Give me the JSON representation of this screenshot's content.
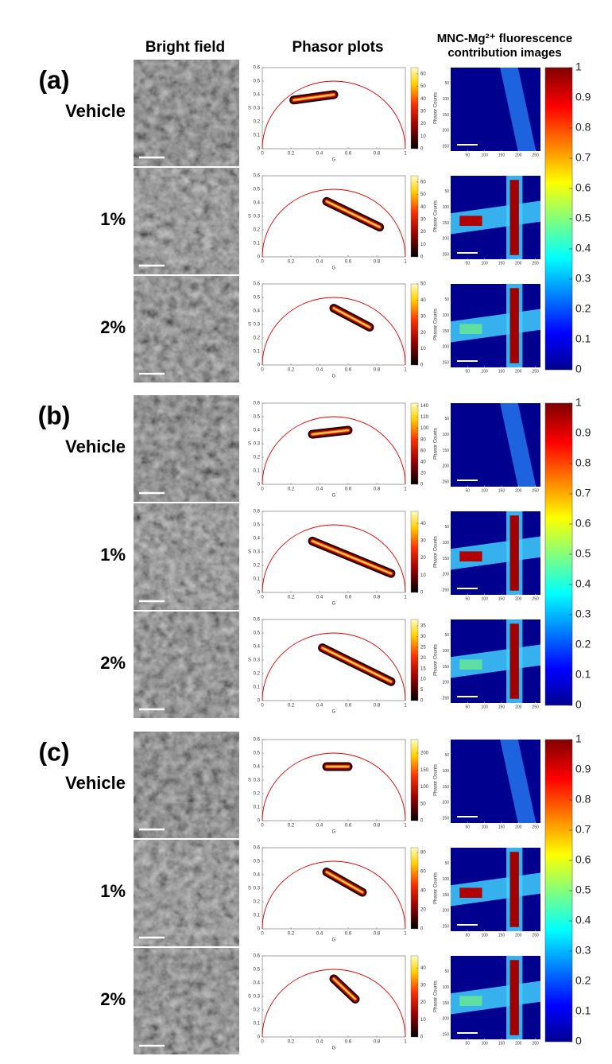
{
  "header": {
    "bright_field": "Bright field",
    "phasor": "Phasor plots",
    "contribution": [
      "MNC-Mg²⁺ fluorescence",
      "contribution images"
    ]
  },
  "phasor_axes": {
    "x_label": "G",
    "y_label": "S",
    "colorbar_label": "Phasor Counts",
    "xlim": [
      0,
      1
    ],
    "ylim": [
      0,
      0.6
    ],
    "xticks": [
      0,
      0.2,
      0.4,
      0.6,
      0.8,
      1
    ],
    "yticks": [
      0,
      0.1,
      0.2,
      0.3,
      0.4,
      0.5,
      0.6
    ],
    "circle_color": "#e00000"
  },
  "image_axes": {
    "lim": [
      0,
      265
    ],
    "ticks": [
      50,
      100,
      150,
      200,
      250
    ]
  },
  "contribution_colorbar": {
    "lim": [
      0,
      1
    ],
    "ticks": [
      0,
      0.1,
      0.2,
      0.3,
      0.4,
      0.5,
      0.6,
      0.7,
      0.8,
      0.9,
      1
    ]
  },
  "panels": [
    {
      "label": "(a)",
      "rows": [
        {
          "label": "Vehicle",
          "count_lim": [
            0,
            65
          ],
          "count_ticks": [
            0,
            10,
            20,
            30,
            40,
            50,
            60
          ],
          "cluster": {
            "g": [
              0.22,
              0.5
            ],
            "s": [
              0.36,
              0.4
            ]
          }
        },
        {
          "label": "1%",
          "count_lim": [
            0,
            65
          ],
          "count_ticks": [
            0,
            10,
            20,
            30,
            40,
            50,
            60
          ],
          "cluster": {
            "g": [
              0.45,
              0.82
            ],
            "s": [
              0.41,
              0.22
            ]
          }
        },
        {
          "label": "2%",
          "count_lim": [
            0,
            50
          ],
          "count_ticks": [
            0,
            10,
            20,
            30,
            40,
            50
          ],
          "cluster": {
            "g": [
              0.5,
              0.75
            ],
            "s": [
              0.42,
              0.28
            ]
          }
        }
      ]
    },
    {
      "label": "(b)",
      "rows": [
        {
          "label": "Vehicle",
          "count_lim": [
            0,
            145
          ],
          "count_ticks": [
            0,
            20,
            40,
            60,
            80,
            100,
            120,
            140
          ],
          "cluster": {
            "g": [
              0.35,
              0.6
            ],
            "s": [
              0.37,
              0.4
            ]
          }
        },
        {
          "label": "1%",
          "count_lim": [
            0,
            47
          ],
          "count_ticks": [
            0,
            10,
            20,
            30,
            40
          ],
          "cluster": {
            "g": [
              0.35,
              0.9
            ],
            "s": [
              0.38,
              0.14
            ]
          }
        },
        {
          "label": "2%",
          "count_lim": [
            0,
            38
          ],
          "count_ticks": [
            0,
            5,
            10,
            15,
            20,
            25,
            30,
            35
          ],
          "cluster": {
            "g": [
              0.42,
              0.9
            ],
            "s": [
              0.39,
              0.14
            ]
          }
        }
      ]
    },
    {
      "label": "(c)",
      "rows": [
        {
          "label": "Vehicle",
          "count_lim": [
            0,
            240
          ],
          "count_ticks": [
            0,
            50,
            100,
            150,
            200
          ],
          "cluster": {
            "g": [
              0.45,
              0.6
            ],
            "s": [
              0.4,
              0.4
            ]
          }
        },
        {
          "label": "1%",
          "count_lim": [
            0,
            85
          ],
          "count_ticks": [
            0,
            20,
            40,
            60,
            80
          ],
          "cluster": {
            "g": [
              0.45,
              0.7
            ],
            "s": [
              0.42,
              0.27
            ]
          }
        },
        {
          "label": "2%",
          "count_lim": [
            0,
            47
          ],
          "count_ticks": [
            0,
            10,
            20,
            30,
            40
          ],
          "cluster": {
            "g": [
              0.5,
              0.65
            ],
            "s": [
              0.43,
              0.28
            ]
          }
        }
      ]
    }
  ]
}
